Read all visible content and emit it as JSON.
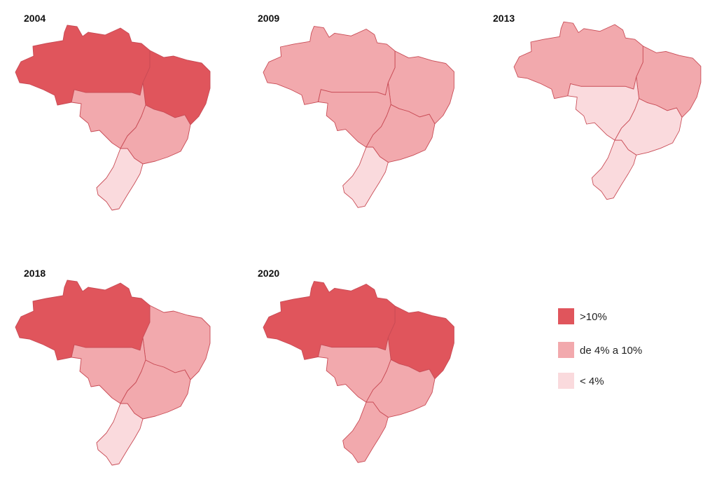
{
  "colors": {
    "high": "#e0555c",
    "mid": "#f2a9ad",
    "low": "#fadadd",
    "border": "#c84b55"
  },
  "legend": [
    {
      "key": "high",
      "label": ">10%"
    },
    {
      "key": "mid",
      "label": "de 4% a 10%"
    },
    {
      "key": "low",
      "label": "< 4%"
    }
  ],
  "panels": [
    {
      "id": "p2004",
      "title": "2004",
      "regions": {
        "north": "high",
        "northeast": "high",
        "centerwest": "mid",
        "southeast": "mid",
        "south": "low"
      }
    },
    {
      "id": "p2009",
      "title": "2009",
      "regions": {
        "north": "mid",
        "northeast": "mid",
        "centerwest": "mid",
        "southeast": "mid",
        "south": "low"
      }
    },
    {
      "id": "p2013",
      "title": "2013",
      "regions": {
        "north": "mid",
        "northeast": "mid",
        "centerwest": "low",
        "southeast": "low",
        "south": "low"
      }
    },
    {
      "id": "p2018",
      "title": "2018",
      "regions": {
        "north": "high",
        "northeast": "mid",
        "centerwest": "mid",
        "southeast": "mid",
        "south": "low"
      }
    },
    {
      "id": "p2020",
      "title": "2020",
      "regions": {
        "north": "high",
        "northeast": "high",
        "centerwest": "mid",
        "southeast": "mid",
        "south": "mid"
      }
    }
  ]
}
